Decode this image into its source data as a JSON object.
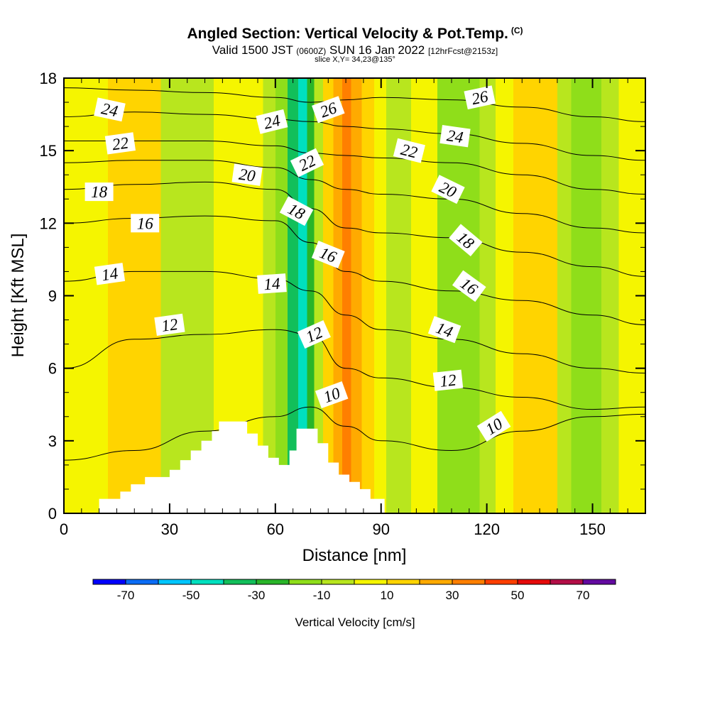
{
  "title": {
    "main": "Angled Section: Vertical Velocity & Pot.Temp.",
    "main_unit": "(C)",
    "valid_pre": "Valid 1500 JST",
    "valid_z": "(0600Z)",
    "valid_date": "SUN 16 Jan 2022",
    "valid_fcst": "[12hrFcst@2153z]",
    "slice": "slice X,Y= 34,23@135°"
  },
  "chart_data": {
    "type": "heatmap",
    "xlabel": "Distance [nm]",
    "ylabel": "Height [Kft MSL]",
    "xlim": [
      0,
      165
    ],
    "ylim": [
      0,
      18
    ],
    "x_ticks": [
      0,
      30,
      60,
      90,
      120,
      150
    ],
    "y_ticks": [
      0,
      3,
      6,
      9,
      12,
      15,
      18
    ],
    "x_tick_labels": [
      "0",
      "30",
      "60",
      "90",
      "120",
      "150"
    ],
    "y_tick_labels": [
      "0",
      "3",
      "6",
      "9",
      "12",
      "15",
      "18"
    ],
    "colorbar": {
      "label": "Vertical Velocity [cm/s]",
      "tick_values": [
        -70,
        -50,
        -30,
        -10,
        10,
        30,
        50,
        70
      ],
      "tick_labels": [
        "-70",
        "-50",
        "-30",
        "-10",
        "10",
        "30",
        "50",
        "70"
      ],
      "bins": [
        -80,
        -70,
        -60,
        -50,
        -40,
        -30,
        -20,
        -10,
        0,
        10,
        20,
        30,
        40,
        50,
        60,
        70,
        80
      ],
      "colors": [
        "#0000ff",
        "#0b6cf5",
        "#00c6ff",
        "#00e0bf",
        "#12bf5a",
        "#29b529",
        "#8fde1a",
        "#b8e61e",
        "#f5f500",
        "#ffd400",
        "#ffaa00",
        "#ff7f00",
        "#ff3f00",
        "#e60a0a",
        "#b30e47",
        "#630aa0"
      ]
    },
    "velocity_columns": [
      {
        "x": 0,
        "w": 0
      },
      {
        "x": 5,
        "w": 2
      },
      {
        "x": 10,
        "w": 8
      },
      {
        "x": 15,
        "w": 14
      },
      {
        "x": 18,
        "w": 16
      },
      {
        "x": 21,
        "w": 16
      },
      {
        "x": 25,
        "w": 10
      },
      {
        "x": 30,
        "w": -3
      },
      {
        "x": 35,
        "w": -8
      },
      {
        "x": 40,
        "w": -4
      },
      {
        "x": 45,
        "w": 6
      },
      {
        "x": 50,
        "w": 8
      },
      {
        "x": 55,
        "w": 3
      },
      {
        "x": 58,
        "w": -8
      },
      {
        "x": 62,
        "w": -20
      },
      {
        "x": 65,
        "w": -32
      },
      {
        "x": 68,
        "w": -44
      },
      {
        "x": 70,
        "w": -30
      },
      {
        "x": 72,
        "w": -8
      },
      {
        "x": 75,
        "w": 12
      },
      {
        "x": 78,
        "w": 28
      },
      {
        "x": 80,
        "w": 36
      },
      {
        "x": 83,
        "w": 26
      },
      {
        "x": 86,
        "w": 16
      },
      {
        "x": 90,
        "w": 6
      },
      {
        "x": 93,
        "w": -6
      },
      {
        "x": 97,
        "w": -3
      },
      {
        "x": 100,
        "w": 6
      },
      {
        "x": 104,
        "w": 2
      },
      {
        "x": 108,
        "w": -14
      },
      {
        "x": 112,
        "w": -20
      },
      {
        "x": 116,
        "w": -16
      },
      {
        "x": 120,
        "w": -6
      },
      {
        "x": 125,
        "w": 4
      },
      {
        "x": 130,
        "w": 10
      },
      {
        "x": 134,
        "w": 16
      },
      {
        "x": 138,
        "w": 10
      },
      {
        "x": 142,
        "w": -6
      },
      {
        "x": 146,
        "w": -20
      },
      {
        "x": 150,
        "w": -12
      },
      {
        "x": 155,
        "w": -4
      },
      {
        "x": 160,
        "w": 2
      },
      {
        "x": 165,
        "w": 2
      }
    ],
    "terrain": {
      "x": [
        0,
        10,
        10,
        16,
        16,
        19,
        19,
        23,
        23,
        30,
        30,
        33,
        33,
        36,
        36,
        39,
        39,
        42,
        42,
        44,
        44,
        52,
        52,
        55,
        55,
        58,
        58,
        61,
        61,
        64,
        64,
        66,
        66,
        72,
        72,
        75,
        75,
        78,
        78,
        81,
        81,
        84,
        84,
        87,
        87,
        91,
        91,
        165
      ],
      "h": [
        0,
        0,
        0.6,
        0.6,
        0.9,
        0.9,
        1.2,
        1.2,
        1.5,
        1.5,
        1.8,
        1.8,
        2.2,
        2.2,
        2.6,
        2.6,
        3.0,
        3.0,
        3.4,
        3.4,
        3.8,
        3.8,
        3.3,
        3.3,
        2.8,
        2.8,
        2.3,
        2.3,
        2.0,
        2.0,
        2.6,
        2.6,
        3.5,
        3.5,
        2.9,
        2.9,
        2.1,
        2.1,
        1.6,
        1.6,
        1.3,
        1.3,
        1.0,
        1.0,
        0.6,
        0.6,
        0,
        0
      ]
    },
    "isentropes": [
      {
        "theta": 10,
        "x": [
          0,
          20,
          40,
          60,
          70,
          80,
          90,
          110,
          130,
          150,
          165
        ],
        "y": [
          2.2,
          2.6,
          3.4,
          4.0,
          4.4,
          3.6,
          3.0,
          2.6,
          3.4,
          4.0,
          4.1
        ]
      },
      {
        "theta": 12,
        "x": [
          0,
          20,
          40,
          60,
          70,
          80,
          90,
          110,
          130,
          150,
          165
        ],
        "y": [
          6.0,
          7.2,
          7.4,
          7.6,
          7.4,
          6.0,
          5.6,
          5.2,
          4.8,
          4.3,
          4.4
        ]
      },
      {
        "theta": 14,
        "x": [
          0,
          20,
          40,
          60,
          70,
          80,
          90,
          110,
          130,
          150,
          165
        ],
        "y": [
          9.6,
          10.0,
          10.0,
          9.7,
          9.2,
          8.2,
          7.6,
          7.2,
          6.6,
          6.0,
          5.8
        ]
      },
      {
        "theta": 16,
        "x": [
          0,
          20,
          40,
          60,
          70,
          80,
          90,
          110,
          130,
          150,
          165
        ],
        "y": [
          12.0,
          12.2,
          12.3,
          12.1,
          11.2,
          10.0,
          9.6,
          9.2,
          8.8,
          8.2,
          7.8
        ]
      },
      {
        "theta": 18,
        "x": [
          0,
          20,
          40,
          60,
          70,
          80,
          90,
          110,
          130,
          150,
          165
        ],
        "y": [
          13.4,
          13.6,
          13.7,
          13.4,
          12.6,
          11.8,
          11.6,
          11.4,
          10.8,
          10.2,
          9.8
        ]
      },
      {
        "theta": 20,
        "x": [
          0,
          20,
          40,
          60,
          70,
          80,
          90,
          110,
          130,
          150,
          165
        ],
        "y": [
          14.5,
          14.6,
          14.6,
          14.3,
          13.8,
          13.4,
          13.2,
          13.0,
          12.4,
          11.8,
          11.6
        ]
      },
      {
        "theta": 22,
        "x": [
          0,
          20,
          40,
          60,
          70,
          80,
          90,
          110,
          130,
          150,
          165
        ],
        "y": [
          15.4,
          15.4,
          15.4,
          15.2,
          14.9,
          14.8,
          14.7,
          14.5,
          14.0,
          13.4,
          13.2
        ]
      },
      {
        "theta": 24,
        "x": [
          0,
          20,
          40,
          60,
          70,
          80,
          90,
          110,
          130,
          150,
          165
        ],
        "y": [
          16.4,
          16.6,
          16.5,
          16.3,
          16.2,
          16.0,
          15.9,
          15.7,
          15.3,
          14.8,
          14.6
        ]
      },
      {
        "theta": 26,
        "x": [
          0,
          20,
          40,
          60,
          70,
          80,
          90,
          110,
          130,
          150,
          165
        ],
        "y": [
          17.6,
          17.5,
          17.4,
          17.2,
          17.0,
          17.1,
          17.2,
          17.1,
          16.8,
          16.4,
          16.2
        ]
      }
    ],
    "isentrope_labels": [
      {
        "text": "24",
        "x": 13,
        "y": 16.7,
        "angle": 12
      },
      {
        "text": "22",
        "x": 16,
        "y": 15.3,
        "angle": -8
      },
      {
        "text": "18",
        "x": 10,
        "y": 13.3,
        "angle": 0
      },
      {
        "text": "16",
        "x": 23,
        "y": 12.0,
        "angle": 0
      },
      {
        "text": "14",
        "x": 13,
        "y": 9.9,
        "angle": -8
      },
      {
        "text": "12",
        "x": 30,
        "y": 7.8,
        "angle": -8
      },
      {
        "text": "20",
        "x": 52,
        "y": 14.0,
        "angle": 8
      },
      {
        "text": "24",
        "x": 59,
        "y": 16.2,
        "angle": -14
      },
      {
        "text": "26",
        "x": 75,
        "y": 16.7,
        "angle": -20
      },
      {
        "text": "22",
        "x": 69,
        "y": 14.5,
        "angle": -26
      },
      {
        "text": "18",
        "x": 66,
        "y": 12.5,
        "angle": 28
      },
      {
        "text": "16",
        "x": 75,
        "y": 10.7,
        "angle": 22
      },
      {
        "text": "14",
        "x": 59,
        "y": 9.5,
        "angle": -4
      },
      {
        "text": "12",
        "x": 71,
        "y": 7.4,
        "angle": -24
      },
      {
        "text": "10",
        "x": 76,
        "y": 4.9,
        "angle": -20
      },
      {
        "text": "22",
        "x": 98,
        "y": 15.0,
        "angle": 14
      },
      {
        "text": "24",
        "x": 111,
        "y": 15.6,
        "angle": 8
      },
      {
        "text": "26",
        "x": 118,
        "y": 17.2,
        "angle": -12
      },
      {
        "text": "20",
        "x": 109,
        "y": 13.4,
        "angle": 26
      },
      {
        "text": "18",
        "x": 114,
        "y": 11.3,
        "angle": 40
      },
      {
        "text": "16",
        "x": 115,
        "y": 9.4,
        "angle": 36
      },
      {
        "text": "14",
        "x": 108,
        "y": 7.6,
        "angle": 20
      },
      {
        "text": "12",
        "x": 109,
        "y": 5.5,
        "angle": -6
      },
      {
        "text": "10",
        "x": 122,
        "y": 3.6,
        "angle": -32
      }
    ]
  }
}
